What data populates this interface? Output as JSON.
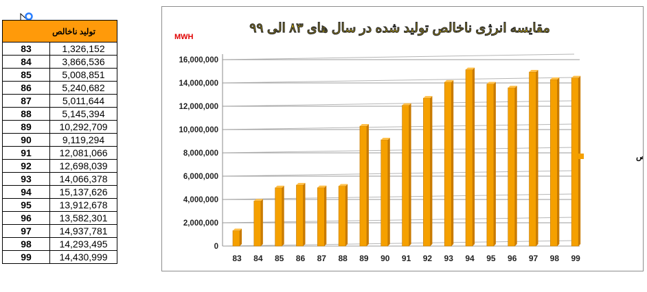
{
  "table": {
    "header": "تولید ناخالص",
    "rows": [
      {
        "year": "83",
        "value": "1,326,152"
      },
      {
        "year": "84",
        "value": "3,866,536"
      },
      {
        "year": "85",
        "value": "5,008,851"
      },
      {
        "year": "86",
        "value": "5,240,682"
      },
      {
        "year": "87",
        "value": "5,011,644"
      },
      {
        "year": "88",
        "value": "5,145,394"
      },
      {
        "year": "89",
        "value": "10,292,709"
      },
      {
        "year": "90",
        "value": "9,119,294"
      },
      {
        "year": "91",
        "value": "12,081,066"
      },
      {
        "year": "92",
        "value": "12,698,039"
      },
      {
        "year": "93",
        "value": "14,066,378"
      },
      {
        "year": "94",
        "value": "15,137,626"
      },
      {
        "year": "95",
        "value": "13,912,678"
      },
      {
        "year": "96",
        "value": "13,582,301"
      },
      {
        "year": "97",
        "value": "14,937,781"
      },
      {
        "year": "98",
        "value": "14,293,495"
      },
      {
        "year": "99",
        "value": "14,430,999"
      }
    ]
  },
  "chart_data": {
    "type": "bar",
    "title": "مقایسه انرژی ناخالص تولید شده در سال های ۸۳ الی ۹۹",
    "ylabel": "MWH",
    "xlabel": "",
    "categories": [
      "83",
      "84",
      "85",
      "86",
      "87",
      "88",
      "89",
      "90",
      "91",
      "92",
      "93",
      "94",
      "95",
      "96",
      "97",
      "98",
      "99"
    ],
    "series": [
      {
        "name": "تولید ناخالص",
        "values": [
          1326152,
          3866536,
          5008851,
          5240682,
          5011644,
          5145394,
          10292709,
          9119294,
          12081066,
          12698039,
          14066378,
          15137626,
          13912678,
          13582301,
          14937781,
          14293495,
          14430999
        ]
      }
    ],
    "ylim": [
      0,
      16000000
    ],
    "yticks": [
      "0",
      "2,000,000",
      "4,000,000",
      "6,000,000",
      "8,000,000",
      "10,000,000",
      "12,000,000",
      "14,000,000",
      "16,000,000"
    ],
    "grid": true,
    "legend": "right",
    "colors": {
      "bar": "#f5a000",
      "bar_dark": "#c97a00",
      "bar_light": "#ffc04a",
      "title": "#ffd700",
      "ylabel": "#e00000"
    }
  }
}
